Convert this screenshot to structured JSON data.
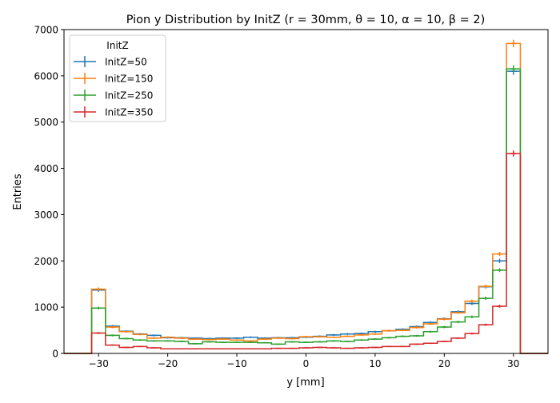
{
  "chart_data": {
    "type": "histogram-step",
    "title": "Pion y Distribution by InitZ (r = 30mm, θ = 10, α = 10, β = 2)",
    "xlabel": "y [mm]",
    "ylabel": "Entries",
    "xlim": [
      -35,
      35
    ],
    "ylim": [
      0,
      7000
    ],
    "xticks": [
      -30,
      -20,
      -10,
      0,
      10,
      20,
      30
    ],
    "yticks": [
      0,
      1000,
      2000,
      3000,
      4000,
      5000,
      6000,
      7000
    ],
    "bin_edges": [
      -35,
      -33,
      -31,
      -29,
      -27,
      -25,
      -23,
      -21,
      -19,
      -17,
      -15,
      -13,
      -11,
      -9,
      -7,
      -5,
      -3,
      -1,
      1,
      3,
      5,
      7,
      9,
      11,
      13,
      15,
      17,
      19,
      21,
      23,
      25,
      27,
      29,
      31,
      33,
      35
    ],
    "legend": {
      "title": "InitZ",
      "position": "upper-left"
    },
    "series": [
      {
        "name": "InitZ=50",
        "color": "#1f77b4",
        "values": [
          0,
          0,
          1370,
          590,
          480,
          420,
          390,
          340,
          340,
          330,
          320,
          330,
          330,
          350,
          330,
          340,
          340,
          350,
          370,
          400,
          420,
          430,
          470,
          490,
          520,
          580,
          670,
          750,
          900,
          1080,
          1440,
          2000,
          6100,
          0,
          0
        ]
      },
      {
        "name": "InitZ=150",
        "color": "#ff7f0e",
        "values": [
          0,
          0,
          1390,
          570,
          470,
          410,
          330,
          350,
          330,
          310,
          300,
          310,
          290,
          270,
          310,
          330,
          320,
          360,
          360,
          350,
          370,
          400,
          420,
          490,
          500,
          560,
          640,
          740,
          880,
          1130,
          1450,
          2150,
          6700,
          0,
          0
        ]
      },
      {
        "name": "InitZ=250",
        "color": "#2ca02c",
        "values": [
          0,
          0,
          980,
          390,
          320,
          290,
          270,
          270,
          260,
          210,
          250,
          240,
          240,
          240,
          230,
          200,
          250,
          240,
          250,
          270,
          260,
          290,
          310,
          340,
          370,
          380,
          470,
          570,
          680,
          790,
          1190,
          1800,
          6150,
          0,
          0
        ]
      },
      {
        "name": "InitZ=350",
        "color": "#d62728",
        "values": [
          0,
          0,
          440,
          180,
          130,
          150,
          120,
          100,
          100,
          100,
          100,
          100,
          100,
          100,
          100,
          110,
          110,
          120,
          130,
          120,
          110,
          120,
          130,
          150,
          150,
          200,
          220,
          260,
          330,
          430,
          620,
          1020,
          4320,
          0,
          0
        ]
      }
    ]
  }
}
